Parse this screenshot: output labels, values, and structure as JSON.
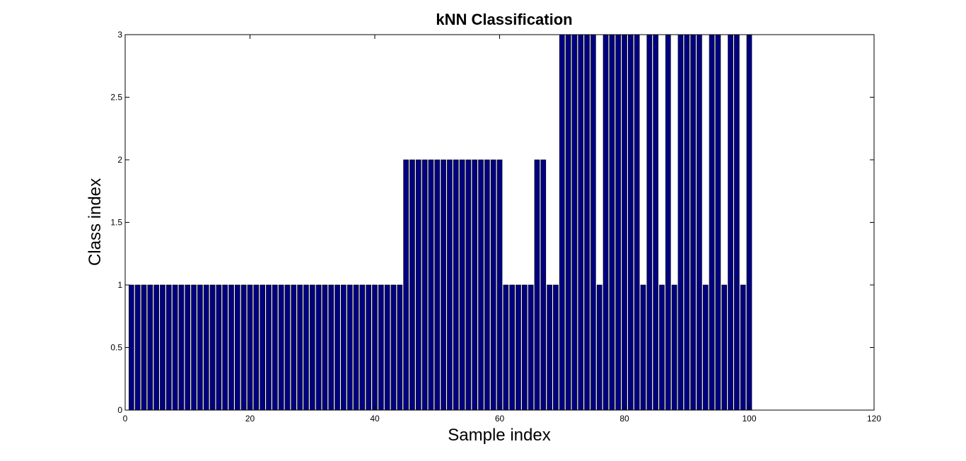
{
  "chart_data": {
    "type": "bar",
    "title": "kNN Classification",
    "xlabel": "Sample index",
    "ylabel": "Class index",
    "xlim": [
      0,
      120
    ],
    "ylim": [
      0,
      3
    ],
    "xticks": [
      0,
      20,
      40,
      60,
      80,
      100,
      120
    ],
    "yticks": [
      0,
      0.5,
      1,
      1.5,
      2,
      2.5,
      3
    ],
    "grid": false,
    "bar_color": "#000080",
    "bar_edge_color": "#000000",
    "x": [
      1,
      2,
      3,
      4,
      5,
      6,
      7,
      8,
      9,
      10,
      11,
      12,
      13,
      14,
      15,
      16,
      17,
      18,
      19,
      20,
      21,
      22,
      23,
      24,
      25,
      26,
      27,
      28,
      29,
      30,
      31,
      32,
      33,
      34,
      35,
      36,
      37,
      38,
      39,
      40,
      41,
      42,
      43,
      44,
      45,
      46,
      47,
      48,
      49,
      50,
      51,
      52,
      53,
      54,
      55,
      56,
      57,
      58,
      59,
      60,
      61,
      62,
      63,
      64,
      65,
      66,
      67,
      68,
      69,
      70,
      71,
      72,
      73,
      74,
      75,
      76,
      77,
      78,
      79,
      80,
      81,
      82,
      83,
      84,
      85,
      86,
      87,
      88,
      89,
      90,
      91,
      92,
      93,
      94,
      95,
      96,
      97,
      98,
      99,
      100
    ],
    "values": [
      1,
      1,
      1,
      1,
      1,
      1,
      1,
      1,
      1,
      1,
      1,
      1,
      1,
      1,
      1,
      1,
      1,
      1,
      1,
      1,
      1,
      1,
      1,
      1,
      1,
      1,
      1,
      1,
      1,
      1,
      1,
      1,
      1,
      1,
      1,
      1,
      1,
      1,
      1,
      1,
      1,
      1,
      1,
      1,
      2,
      2,
      2,
      2,
      2,
      2,
      2,
      2,
      2,
      2,
      2,
      2,
      2,
      2,
      2,
      2,
      1,
      1,
      1,
      1,
      1,
      2,
      2,
      1,
      1,
      3,
      3,
      3,
      3,
      3,
      3,
      1,
      3,
      3,
      3,
      3,
      3,
      3,
      1,
      3,
      3,
      1,
      3,
      1,
      3,
      3,
      3,
      3,
      1,
      3,
      3,
      1,
      3,
      3,
      1,
      3
    ]
  }
}
